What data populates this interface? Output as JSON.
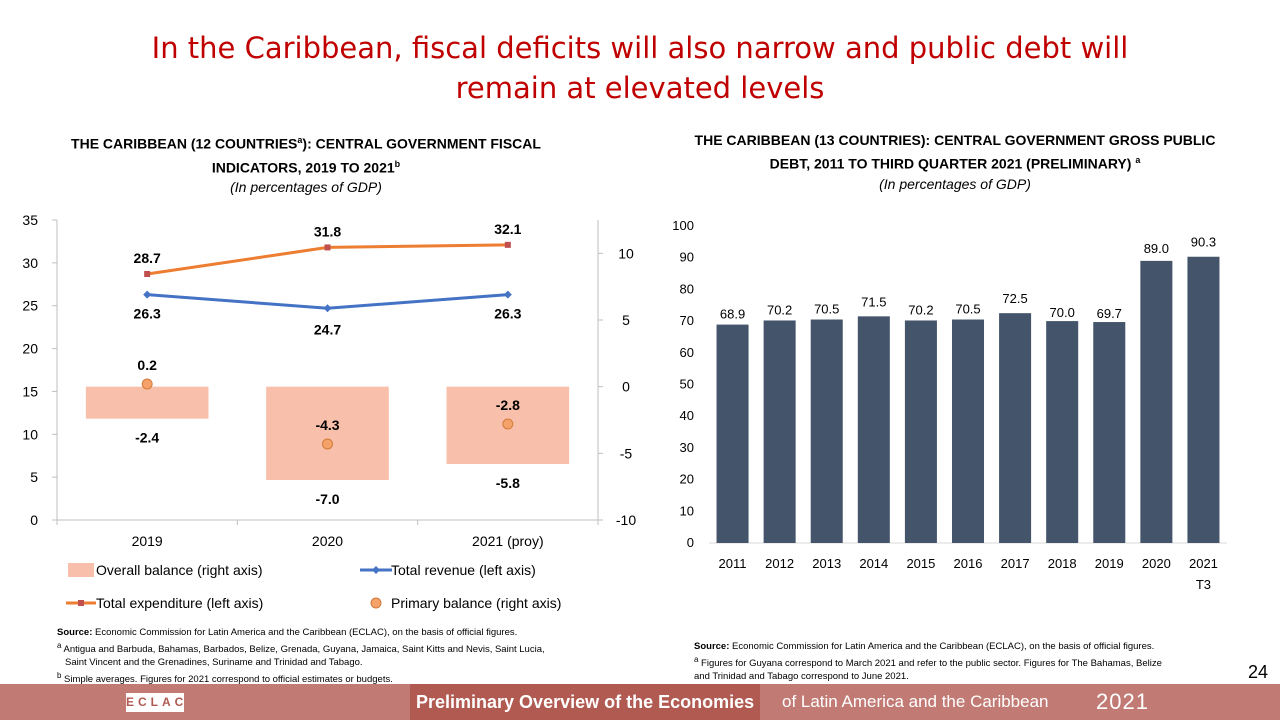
{
  "slide": {
    "title_line1": "In the Caribbean, fiscal deficits will also narrow and public debt will",
    "title_line2": "remain at elevated levels",
    "page_number": "24"
  },
  "left_chart": {
    "title_line1": "THE CARIBBEAN (12 COUNTRIES",
    "title_sup_a": "a",
    "title_line1_end": "): CENTRAL GOVERNMENT FISCAL",
    "title_line2": "INDICATORS, 2019 TO 2021",
    "title_sup_b": "b",
    "subtitle": "(In percentages of GDP)",
    "source_label": "Source:",
    "source_text": "Economic Commission for Latin America and the Caribbean (ECLAC), on the basis of official figures.",
    "note_a_mark": "a",
    "note_a": "Antigua and Barbuda, Bahamas, Barbados, Belize, Grenada, Guyana, Jamaica, Saint Kitts and Nevis, Saint Lucia,",
    "note_a_cont": "Saint Vincent and the Grenadines, Suriname and Trinidad and Tabago.",
    "note_b_mark": "b",
    "note_b": "Simple averages. Figures for 2021 correspond to official estimates or budgets."
  },
  "right_chart": {
    "title_line1": "THE CARIBBEAN (13 COUNTRIES): CENTRAL GOVERNMENT GROSS PUBLIC",
    "title_line2": "DEBT, 2011 TO THIRD QUARTER 2021 (PRELIMINARY)",
    "title_sup_a": "a",
    "subtitle": "(In percentages of GDP)",
    "source_label": "Source:",
    "source_text": "Economic Commission for Latin America and the Caribbean (ECLAC), on the basis of official figures.",
    "note_a_mark": "a",
    "note_a": "Figures for Guyana correspond to March 2021 and refer to the public sector. Figures for The Bahamas, Belize",
    "note_a_cont": "and Trinidad and Tabago correspond to June 2021."
  },
  "footer": {
    "logo": "ECLAC",
    "prelim": "Preliminary Overview of the Economies",
    "rest": "of Latin America and the Caribbean",
    "year": "2021"
  },
  "colors": {
    "title": "#c00000",
    "balance_fill": "#f8c0ab",
    "revenue": "#4472c4",
    "expenditure": "#ed7d31",
    "expenditure_marker": "#c0504d",
    "primary_fill": "#f4a26a",
    "primary_stroke": "#d47a3a",
    "debt_bar": "#44546a",
    "footer_bg": "#c17b74"
  },
  "chart_data": [
    {
      "type": "combo",
      "categories": [
        "2019",
        "2020",
        "2021 (proy)"
      ],
      "left_axis": {
        "ylim": [
          0,
          35
        ],
        "ticks": [
          0,
          5,
          10,
          15,
          20,
          25,
          30,
          35
        ]
      },
      "right_axis": {
        "ylim": [
          -10,
          12.5
        ],
        "ticks": [
          10,
          5,
          0,
          -5,
          -10
        ]
      },
      "series": [
        {
          "name": "Overall balance (right axis)",
          "type": "bar",
          "axis": "right",
          "values": [
            -2.4,
            -7.0,
            -5.8
          ],
          "labels": [
            "-2.4",
            "-7.0",
            "-5.8"
          ]
        },
        {
          "name": "Total revenue (left axis)",
          "type": "line",
          "axis": "left",
          "values": [
            26.3,
            24.7,
            26.3
          ],
          "labels": [
            "26.3",
            "24.7",
            "26.3"
          ]
        },
        {
          "name": "Total expenditure (left axis)",
          "type": "line",
          "axis": "left",
          "values": [
            28.7,
            31.8,
            32.1
          ],
          "labels": [
            "28.7",
            "31.8",
            "32.1"
          ]
        },
        {
          "name": "Primary balance (right axis)",
          "type": "scatter",
          "axis": "right",
          "values": [
            0.2,
            -4.3,
            -2.8
          ],
          "labels": [
            "0.2",
            "-4.3",
            "-2.8"
          ]
        }
      ],
      "legend": [
        "Overall balance (right axis)",
        "Total revenue (left axis)",
        "Total expenditure (left axis)",
        "Primary balance (right axis)"
      ]
    },
    {
      "type": "bar",
      "categories": [
        "2011",
        "2012",
        "2013",
        "2014",
        "2015",
        "2016",
        "2017",
        "2018",
        "2019",
        "2020",
        "2021"
      ],
      "category_sublabels": [
        "",
        "",
        "",
        "",
        "",
        "",
        "",
        "",
        "",
        "",
        "T3"
      ],
      "values": [
        68.9,
        70.2,
        70.5,
        71.5,
        70.2,
        70.5,
        72.5,
        70.0,
        69.7,
        89.0,
        90.3
      ],
      "labels": [
        "68.9",
        "70.2",
        "70.5",
        "71.5",
        "70.2",
        "70.5",
        "72.5",
        "70.0",
        "69.7",
        "89.0",
        "90.3"
      ],
      "ylim": [
        0,
        100
      ],
      "ticks": [
        0,
        10,
        20,
        30,
        40,
        50,
        60,
        70,
        80,
        90,
        100
      ]
    }
  ]
}
